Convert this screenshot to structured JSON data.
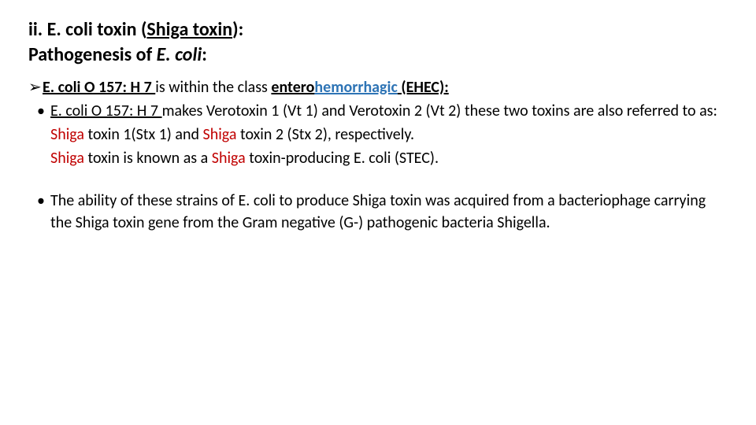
{
  "heading": {
    "line1_a": "ii. E. coli toxin (",
    "line1_b": "Shiga toxin",
    "line1_c": "):",
    "line2_a": "Pathogenesis of ",
    "line2_b": "E. coli",
    "line2_c": ":"
  },
  "arrow_line": {
    "marker": "➢",
    "a": "E. coli O 157: H 7 ",
    "b": "is within the class ",
    "c_pre": "entero",
    "c_hem": "hemorrhagic",
    "c_post": " (EHEC):"
  },
  "bullet1": {
    "marker": "•",
    "a": " E. coli O 157: H 7 ",
    "b": "makes Verotoxin 1 (Vt 1) and Verotoxin 2 (Vt 2) these two toxins are also referred to as:"
  },
  "sub1": {
    "a": "Shiga",
    "b": " toxin  1(Stx 1) and ",
    "c": "Shiga",
    "d": " toxin 2 (Stx 2), respectively."
  },
  "sub2": {
    "a": "Shiga",
    "b": " toxin is known as a ",
    "c": "Shiga",
    "d": " toxin-producing E. coli (STEC)."
  },
  "bullet2": {
    "marker": "•",
    "text": "The ability of these strains of E. coli to produce Shiga toxin was acquired from a bacteriophage carrying the Shiga toxin gene from the Gram negative (G-) pathogenic bacteria Shigella."
  }
}
